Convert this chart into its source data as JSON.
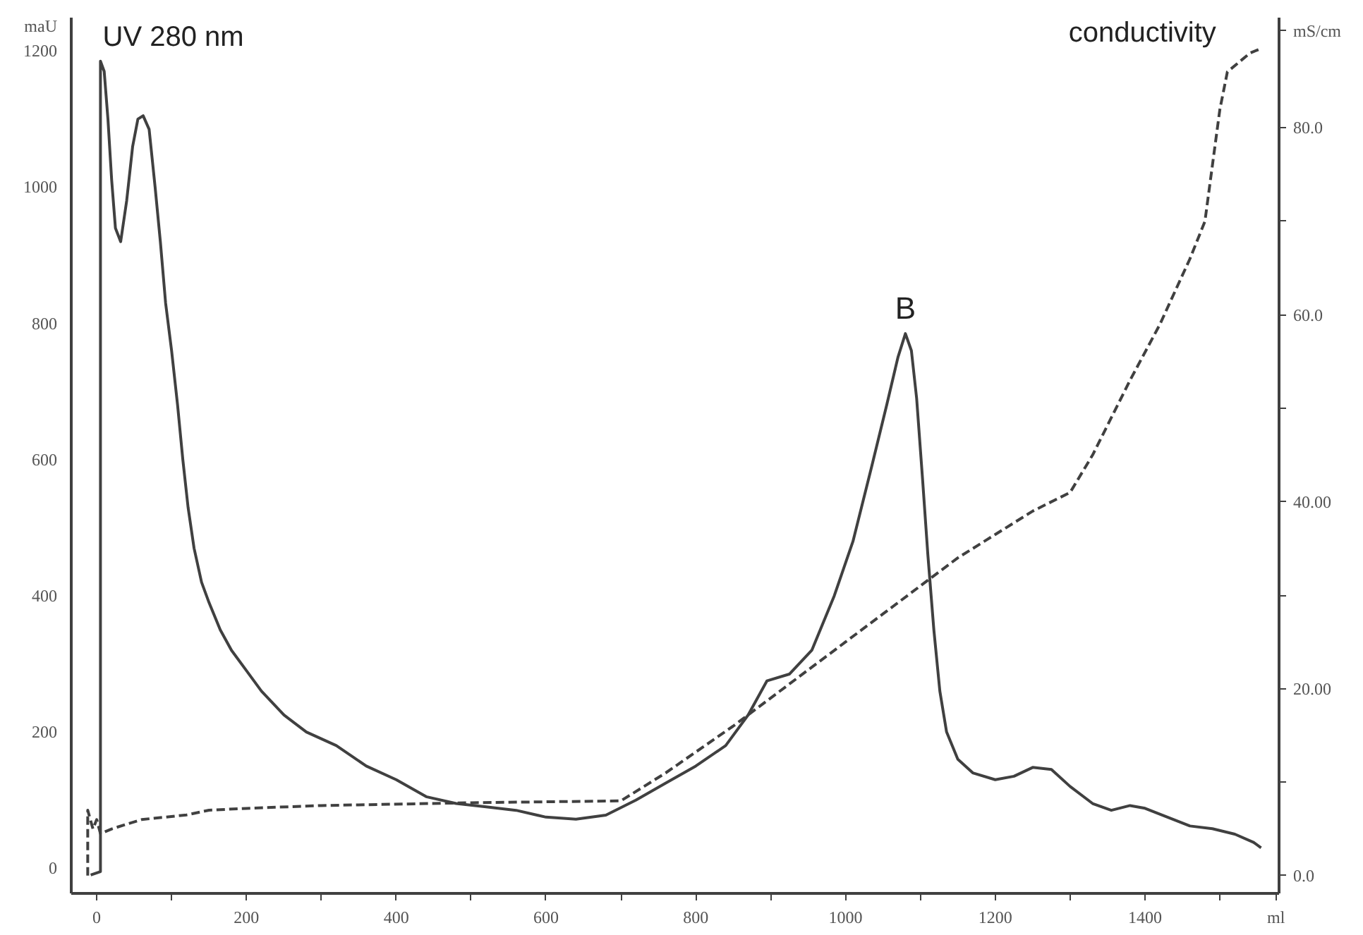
{
  "chart_data": {
    "type": "line",
    "xlim": [
      -34,
      1579
    ],
    "ylim": [
      -37,
      1249
    ],
    "y2lim": [
      -1.9,
      91.8
    ],
    "xticks": [
      0,
      {
        "value": 100,
        "label": null
      },
      200,
      {
        "value": 300,
        "label": null
      },
      400,
      {
        "value": 500,
        "label": null
      },
      600,
      {
        "value": 700,
        "label": null
      },
      800,
      {
        "value": 900,
        "label": null
      },
      1000,
      {
        "value": 1100,
        "label": null
      },
      1200,
      {
        "value": 1300,
        "label": null
      },
      1400,
      {
        "value": 1500,
        "label": null
      },
      {
        "value": 1575,
        "label": "ml"
      }
    ],
    "yticks": [
      0,
      200,
      400,
      600,
      800,
      1000,
      1200,
      {
        "value": 1237,
        "label": "maU"
      }
    ],
    "y2ticks": [
      {
        "value": 0,
        "label": "0.0"
      },
      {
        "value": 10,
        "label": null
      },
      {
        "value": 20,
        "label": "20.00"
      },
      {
        "value": 30,
        "label": null
      },
      {
        "value": 40,
        "label": "40.00"
      },
      {
        "value": 50,
        "label": null
      },
      {
        "value": 60,
        "label": "60.0"
      },
      {
        "value": 70,
        "label": null
      },
      {
        "value": 80,
        "label": "80.0"
      },
      {
        "value": 90.4,
        "label": "mS/cm"
      }
    ],
    "grid": false,
    "annotations": [
      "B"
    ],
    "series": [
      {
        "name": "UV 280 nm",
        "color": "#404040",
        "line_style": "solid",
        "x": [
          -8,
          5,
          5,
          10,
          15,
          20,
          25,
          32,
          40,
          48,
          55,
          62,
          70,
          78,
          85,
          92,
          100,
          108,
          115,
          122,
          130,
          140,
          150,
          165,
          180,
          200,
          220,
          250,
          280,
          320,
          360,
          400,
          440,
          480,
          520,
          560,
          600,
          640,
          680,
          720,
          760,
          800,
          840,
          870,
          895,
          925,
          955,
          985,
          1010,
          1035,
          1055,
          1070,
          1080,
          1088,
          1095,
          1103,
          1110,
          1118,
          1126,
          1135,
          1150,
          1170,
          1200,
          1225,
          1250,
          1275,
          1300,
          1330,
          1355,
          1380,
          1400,
          1430,
          1460,
          1490,
          1520,
          1545,
          1555
        ],
        "values": [
          -10,
          -5,
          1185,
          1170,
          1100,
          1010,
          940,
          920,
          980,
          1060,
          1100,
          1105,
          1085,
          1000,
          920,
          830,
          760,
          680,
          600,
          530,
          470,
          420,
          390,
          350,
          320,
          290,
          260,
          225,
          200,
          180,
          150,
          130,
          105,
          95,
          90,
          85,
          75,
          72,
          78,
          100,
          125,
          150,
          180,
          225,
          275,
          285,
          320,
          400,
          480,
          590,
          680,
          750,
          785,
          760,
          690,
          570,
          460,
          350,
          260,
          200,
          160,
          140,
          130,
          135,
          148,
          145,
          120,
          95,
          85,
          92,
          88,
          75,
          62,
          58,
          50,
          38,
          30
        ]
      },
      {
        "name": "conductivity",
        "color": "#404040",
        "line_style": "dashed",
        "axis": "y2",
        "x": [
          -12,
          -12,
          -5,
          0,
          5,
          20,
          60,
          120,
          150,
          200,
          300,
          500,
          700,
          760,
          850,
          950,
          1000,
          1050,
          1100,
          1150,
          1200,
          1250,
          1300,
          1330,
          1380,
          1420,
          1460,
          1480,
          1490,
          1500,
          1510,
          1540,
          1555
        ],
        "values": [
          0,
          7,
          5,
          6,
          4.5,
          5,
          6,
          6.5,
          7,
          7.2,
          7.5,
          7.8,
          8,
          11,
          16,
          22,
          25,
          28,
          31,
          34,
          36.5,
          39,
          41,
          45,
          53,
          59,
          66,
          70,
          76,
          82,
          86,
          88,
          88.5
        ]
      }
    ]
  }
}
